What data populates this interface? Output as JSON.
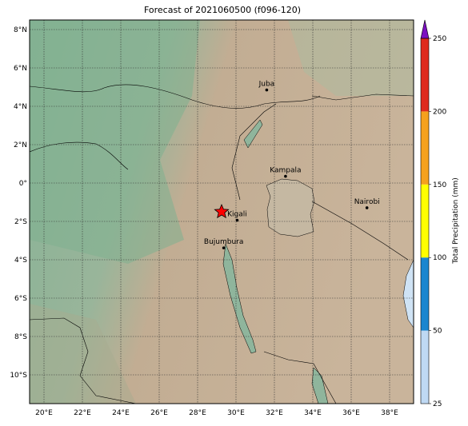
{
  "title": "Forecast of 2021060500 (f096-120)",
  "map": {
    "lon_range": [
      19.25,
      39.25
    ],
    "lat_range": [
      -11.5,
      8.5
    ],
    "lon_ticks": [
      {
        "value": 20,
        "label": "20°E"
      },
      {
        "value": 22,
        "label": "22°E"
      },
      {
        "value": 24,
        "label": "24°E"
      },
      {
        "value": 26,
        "label": "26°E"
      },
      {
        "value": 28,
        "label": "28°E"
      },
      {
        "value": 30,
        "label": "30°E"
      },
      {
        "value": 32,
        "label": "32°E"
      },
      {
        "value": 34,
        "label": "34°E"
      },
      {
        "value": 36,
        "label": "36°E"
      },
      {
        "value": 38,
        "label": "38°E"
      }
    ],
    "lat_ticks": [
      {
        "value": 8,
        "label": "8°N"
      },
      {
        "value": 6,
        "label": "6°N"
      },
      {
        "value": 4,
        "label": "4°N"
      },
      {
        "value": 2,
        "label": "2°N"
      },
      {
        "value": 0,
        "label": "0°"
      },
      {
        "value": -2,
        "label": "2°S"
      },
      {
        "value": -4,
        "label": "4°S"
      },
      {
        "value": -6,
        "label": "6°S"
      },
      {
        "value": -8,
        "label": "8°S"
      },
      {
        "value": -10,
        "label": "10°S"
      }
    ],
    "cities": [
      {
        "name": "Juba",
        "lon": 31.6,
        "lat": 4.85
      },
      {
        "name": "Kampala",
        "lon": 32.58,
        "lat": 0.35
      },
      {
        "name": "Nairobi",
        "lon": 36.82,
        "lat": -1.29
      },
      {
        "name": "Kigali",
        "lon": 30.06,
        "lat": -1.94
      },
      {
        "name": "Bujumbura",
        "lon": 29.36,
        "lat": -3.38
      }
    ],
    "marker": {
      "lon": 29.25,
      "lat": -1.5,
      "color": "#ff0000"
    }
  },
  "colorbar": {
    "label": "Total Precipitation (mm)",
    "bounds": [
      25,
      50,
      100,
      150,
      200,
      250
    ],
    "colors": [
      "#bfd9f3",
      "#1a86cf",
      "#ffff00",
      "#f5a11d",
      "#df2a1d"
    ],
    "extend_color": "#7b10c0"
  }
}
